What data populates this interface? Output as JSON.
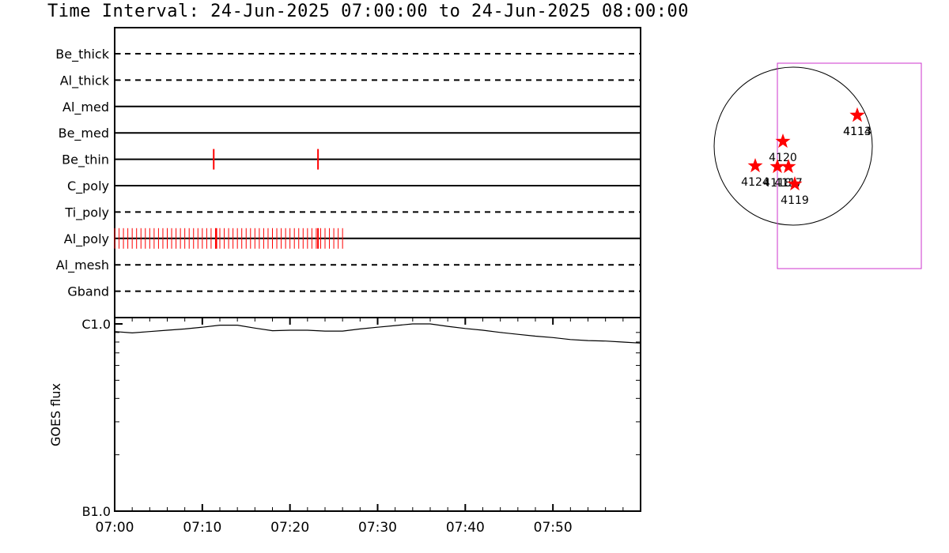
{
  "header": {
    "title": "Time Interval: 24-Jun-2025 07:00:00 to 24-Jun-2025 08:00:00"
  },
  "colors": {
    "axes": "#000000",
    "event_marks": "#ff0000",
    "fov_box": "#cc33cc",
    "star": "#ff0000"
  },
  "chart_data": [
    {
      "type": "line",
      "title": "",
      "xlabel": "",
      "ylabel": "",
      "x_tick_labels": [
        "07:00",
        "07:10",
        "07:20",
        "07:30",
        "07:40",
        "07:50"
      ],
      "x_range": [
        "07:00",
        "08:00"
      ],
      "series": [
        {
          "name": "Be_thick",
          "style": "dashed",
          "events": []
        },
        {
          "name": "Al_thick",
          "style": "dashed",
          "events": []
        },
        {
          "name": "Al_med",
          "style": "solid",
          "events": []
        },
        {
          "name": "Be_med",
          "style": "solid",
          "events": []
        },
        {
          "name": "Be_thin",
          "style": "solid",
          "events": [
            "07:11.3",
            "07:23.2"
          ]
        },
        {
          "name": "C_poly",
          "style": "solid",
          "events": []
        },
        {
          "name": "Ti_poly",
          "style": "dashed",
          "events": []
        },
        {
          "name": "Al_poly",
          "style": "solid",
          "event_range": [
            "07:00",
            "07:26"
          ],
          "event_interval_minutes": 0.5,
          "events": [
            "07:11.6",
            "07:23.2"
          ]
        },
        {
          "name": "Al_mesh",
          "style": "dashed",
          "events": []
        },
        {
          "name": "Gband",
          "style": "dashed",
          "events": []
        }
      ]
    },
    {
      "type": "line",
      "title": "",
      "xlabel": "",
      "ylabel": "GOES flux",
      "yscale": "log",
      "ylim": [
        "B1.0",
        "C1.0"
      ],
      "y_tick_labels": [
        "B1.0",
        "C1.0"
      ],
      "x_tick_labels": [
        "07:00",
        "07:10",
        "07:20",
        "07:30",
        "07:40",
        "07:50"
      ],
      "x_range": [
        "07:00",
        "08:00"
      ],
      "series": [
        {
          "name": "",
          "x_minutes": [
            0,
            2,
            4,
            6,
            8,
            10,
            12,
            14,
            16,
            18,
            20,
            22,
            24,
            26,
            28,
            30,
            32,
            34,
            36,
            38,
            40,
            42,
            44,
            46,
            48,
            50,
            52,
            54,
            56,
            58,
            60
          ],
          "values_C": [
            0.91,
            0.895,
            0.91,
            0.925,
            0.94,
            0.96,
            0.985,
            0.985,
            0.95,
            0.92,
            0.925,
            0.925,
            0.915,
            0.915,
            0.94,
            0.96,
            0.98,
            1.0,
            1.0,
            0.97,
            0.945,
            0.925,
            0.9,
            0.88,
            0.86,
            0.845,
            0.825,
            0.815,
            0.81,
            0.8,
            0.79
          ]
        }
      ]
    },
    {
      "type": "scatter",
      "title": "",
      "xlabel": "",
      "ylabel": "",
      "grid": false,
      "disk": true,
      "points": [
        {
          "label": "4113",
          "x": 0.81,
          "y": 0.39
        },
        {
          "label": "4114",
          "x": 0.81,
          "y": 0.39
        },
        {
          "label": "4120",
          "x": -0.13,
          "y": 0.06
        },
        {
          "label": "4124",
          "x": -0.48,
          "y": -0.25
        },
        {
          "label": "4118",
          "x": -0.2,
          "y": -0.26
        },
        {
          "label": "4117",
          "x": -0.06,
          "y": -0.26
        },
        {
          "label": "4119",
          "x": 0.02,
          "y": -0.48
        }
      ],
      "field_of_view": {
        "x": [
          -0.2,
          1.7
        ],
        "y": [
          -1.55,
          1.05
        ]
      }
    }
  ]
}
